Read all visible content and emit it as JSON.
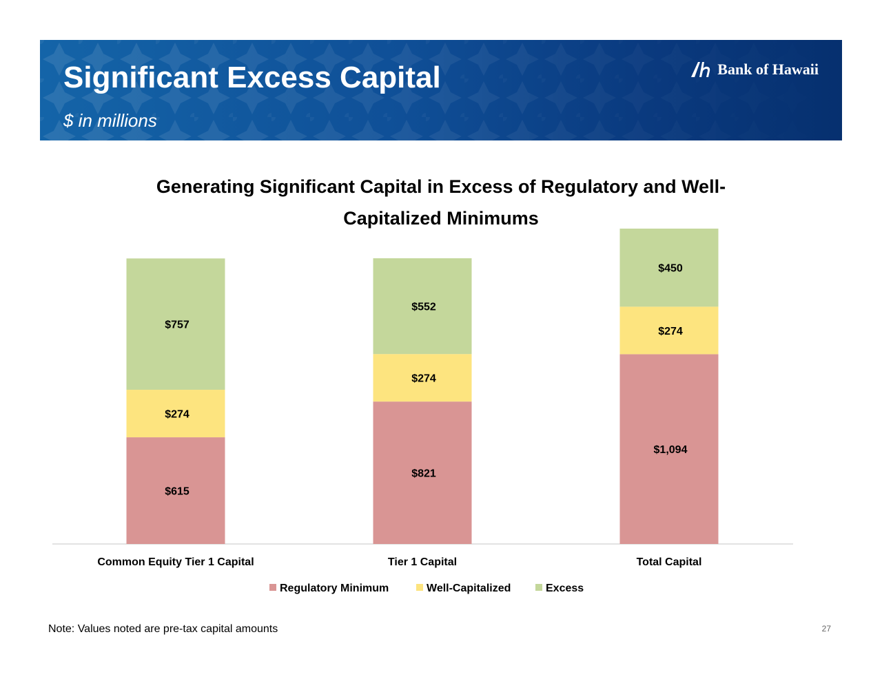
{
  "header": {
    "title": "Significant Excess Capital",
    "subtitle": "$ in millions",
    "logo_text": "Bank of Hawaii",
    "logo_icon": "bank-of-hawaii-logo-icon",
    "banner_color": "#0f4f97"
  },
  "chart_data": {
    "type": "bar",
    "stacked": true,
    "title_line1": "Generating Significant Capital in Excess of Regulatory and Well-",
    "title_line2": "Capitalized Minimums",
    "categories": [
      "Common Equity Tier 1 Capital",
      "Tier 1 Capital",
      "Total Capital"
    ],
    "series": [
      {
        "name": "Regulatory Minimum",
        "color": "#d99594",
        "values": [
          615,
          821,
          1094
        ],
        "labels": [
          "$615",
          "$821",
          "$1,094"
        ]
      },
      {
        "name": "Well-Capitalized",
        "color": "#fde47f",
        "values": [
          274,
          274,
          274
        ],
        "labels": [
          "$274",
          "$274",
          "$274"
        ]
      },
      {
        "name": "Excess",
        "color": "#c4d79b",
        "values": [
          757,
          552,
          450
        ],
        "labels": [
          "$757",
          "$552",
          "$450"
        ]
      }
    ],
    "ylim": [
      0,
      1818
    ],
    "legend": "bottom",
    "grid": false
  },
  "footer": {
    "note": "Note: Values noted are pre-tax capital amounts",
    "page_number": "27"
  }
}
